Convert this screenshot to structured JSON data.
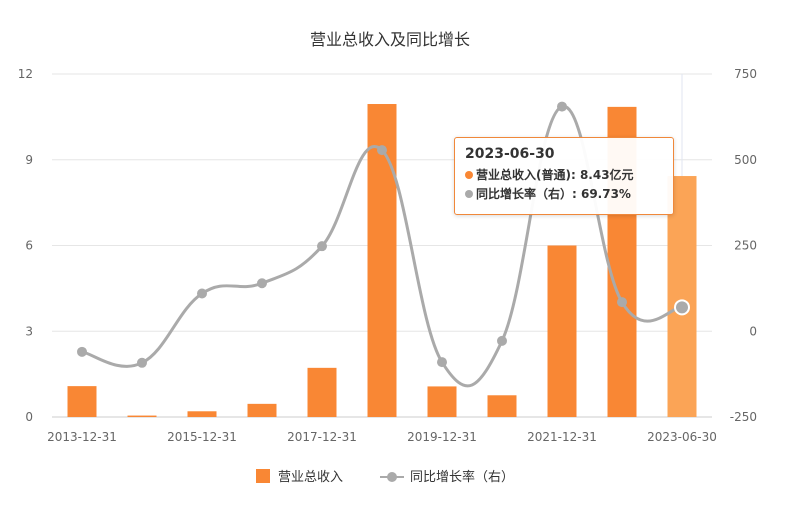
{
  "chart_data": {
    "type": "bar+line",
    "title": "营业总收入及同比增长",
    "x_ticks": [
      "2013-12-31",
      "2015-12-31",
      "2017-12-31",
      "2019-12-31",
      "2021-12-31",
      "2023-06-30"
    ],
    "categories": [
      "2013-12-31",
      "2014-12-31",
      "2015-12-31",
      "2016-12-31",
      "2017-12-31",
      "2018-12-31",
      "2019-12-31",
      "2020-12-31",
      "2021-12-31",
      "2022-12-31",
      "2023-06-30"
    ],
    "left_axis": {
      "ticks": [
        0,
        3,
        6,
        9,
        12
      ],
      "ylim": [
        0,
        12
      ]
    },
    "right_axis": {
      "ticks": [
        -250,
        0,
        250,
        500,
        750
      ],
      "ylim": [
        -250,
        750
      ]
    },
    "series": [
      {
        "name": "营业总收入",
        "type": "bar",
        "axis": "left",
        "color": "#f98734",
        "values": [
          1.08,
          0.05,
          0.2,
          0.46,
          1.72,
          10.95,
          1.07,
          0.76,
          6.0,
          10.85,
          8.43
        ]
      },
      {
        "name": "同比增长率（右）",
        "type": "line",
        "axis": "right",
        "color": "#aaaaaa",
        "values": [
          -60,
          -92,
          110,
          140,
          248,
          528,
          -90,
          -28,
          655,
          85,
          69.73
        ]
      }
    ],
    "legend": {
      "position": "bottom-center"
    },
    "tooltip": {
      "header": "2023-06-30",
      "row1": "营业总收入(普通): 8.43亿元",
      "row2": "同比增长率（右）: 69.73%"
    }
  }
}
